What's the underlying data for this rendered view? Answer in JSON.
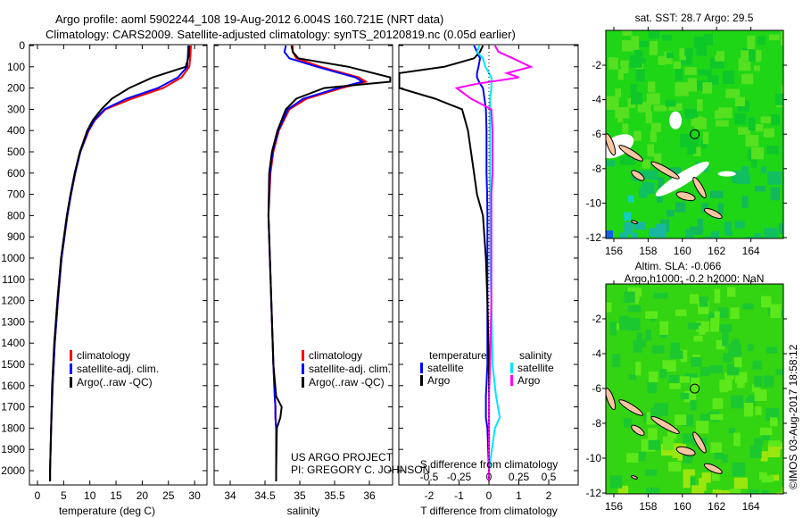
{
  "title": {
    "line1": "Argo profile: aoml 5902244_108 19-Aug-2012 6.004S 160.721E (NRT data)",
    "line2": "Climatology: CARS2009. Satellite-adjusted climatology: synTS_20120819.nc (0.05d earlier)"
  },
  "colors": {
    "climatology": "#ff0000",
    "satellite": "#0000ff",
    "argo": "#000000",
    "sal_satellite": "#00e5ff",
    "sal_argo": "#ff00ff"
  },
  "annotation": {
    "project": "US ARGO PROJECT",
    "pi": "PI: GREGORY C. JOHNSON"
  },
  "credit": "©IMOS 03-Aug-2017 18:58:12",
  "chart_data": [
    {
      "type": "line",
      "name": "temperature",
      "xlabel": "temperature (deg C)",
      "ylim": [
        2070,
        0
      ],
      "xlim": [
        -1.5,
        32.5
      ],
      "xticks": [
        "0",
        "5",
        "10",
        "15",
        "20",
        "25",
        "30"
      ],
      "yticks": [
        "0",
        "100",
        "200",
        "300",
        "400",
        "500",
        "600",
        "700",
        "800",
        "900",
        "1000",
        "1100",
        "1200",
        "1300",
        "1400",
        "1500",
        "1600",
        "1700",
        "1800",
        "1900",
        "2000"
      ],
      "legend": [
        "climatology",
        "satellite-adj. clim.",
        "Argo(..raw -QC)"
      ],
      "depth": [
        0,
        50,
        100,
        150,
        200,
        250,
        300,
        350,
        400,
        500,
        600,
        700,
        800,
        1000,
        1200,
        1400,
        1600,
        1800,
        2000,
        2050
      ],
      "series": [
        {
          "name": "climatology",
          "values": [
            29.3,
            29.2,
            29.0,
            27.5,
            24,
            18,
            13,
            11,
            9.8,
            8.2,
            7.2,
            6.4,
            5.7,
            4.6,
            3.9,
            3.3,
            2.9,
            2.6,
            2.4,
            2.4
          ]
        },
        {
          "name": "satellite-adj. clim.",
          "values": [
            28.8,
            28.7,
            28.6,
            26.8,
            23,
            17,
            12.8,
            10.9,
            9.7,
            8.2,
            7.2,
            6.4,
            5.7,
            4.6,
            3.9,
            3.3,
            2.9,
            2.6,
            2.4,
            2.4
          ]
        },
        {
          "name": "Argo(..raw -QC)",
          "values": [
            29.0,
            28.9,
            28.3,
            22,
            17.5,
            14.2,
            12.2,
            10.6,
            9.5,
            8.1,
            7.1,
            6.3,
            5.6,
            4.5,
            3.8,
            3.2,
            2.8,
            2.6,
            2.4,
            2.4
          ]
        }
      ]
    },
    {
      "type": "line",
      "name": "salinity",
      "xlabel": "salinity",
      "ylim": [
        2070,
        0
      ],
      "xlim": [
        33.77,
        36.33
      ],
      "xticks": [
        "34",
        "34.5",
        "35",
        "35.5",
        "36"
      ],
      "legend": [
        "climatology",
        "satellite-adj. clim.",
        "Argo(..raw -QC)"
      ],
      "depth": [
        0,
        30,
        60,
        100,
        150,
        170,
        200,
        250,
        300,
        400,
        500,
        600,
        800,
        1000,
        1500,
        1650,
        1700,
        1750,
        1800,
        2000,
        2050
      ],
      "series": [
        {
          "name": "climatology",
          "values": [
            34.9,
            34.9,
            34.95,
            35.3,
            35.85,
            35.95,
            35.6,
            35.1,
            34.85,
            34.7,
            34.62,
            34.58,
            34.55,
            34.57,
            34.62,
            34.64,
            34.65,
            34.65,
            34.66,
            34.66,
            34.66
          ]
        },
        {
          "name": "satellite-adj. clim.",
          "values": [
            34.8,
            34.78,
            34.85,
            35.25,
            35.8,
            35.9,
            35.55,
            35.05,
            34.83,
            34.69,
            34.61,
            34.57,
            34.55,
            34.57,
            34.62,
            34.64,
            34.65,
            34.65,
            34.66,
            34.66,
            34.66
          ]
        },
        {
          "name": "Argo(..raw -QC)",
          "values": [
            34.88,
            34.9,
            34.98,
            35.7,
            36.3,
            36.3,
            35.35,
            34.95,
            34.8,
            34.68,
            34.6,
            34.56,
            34.55,
            34.57,
            34.62,
            34.66,
            34.74,
            34.72,
            34.67,
            34.66,
            34.66
          ]
        }
      ]
    },
    {
      "type": "line",
      "name": "difference",
      "xlabel": "T difference from climatology",
      "x2label": "S difference from climatology",
      "ylim": [
        2070,
        0
      ],
      "xlim": [
        -3,
        3
      ],
      "xticks": [
        "-2",
        "-1",
        "0",
        "1",
        "2"
      ],
      "x2ticks": [
        "-0.5",
        "-0.25",
        "0",
        "0.25",
        "0.5"
      ],
      "legend_titles": [
        "temperature",
        "salinity"
      ],
      "legend": [
        "satellite",
        "Argo",
        "satellite",
        "Argo"
      ],
      "depth": [
        0,
        30,
        60,
        100,
        130,
        150,
        180,
        200,
        250,
        300,
        400,
        500,
        600,
        700,
        800,
        1000,
        1200,
        1500,
        1650,
        1750,
        1800,
        2000,
        2050
      ],
      "series": [
        {
          "name": "T satellite",
          "kind": "T",
          "values": [
            -0.5,
            -0.4,
            -0.3,
            -0.35,
            -0.4,
            -0.4,
            -0.3,
            -0.2,
            -0.15,
            -0.1,
            -0.08,
            -0.08,
            -0.08,
            -0.06,
            -0.05,
            -0.05,
            -0.05,
            -0.05,
            -0.1,
            -0.1,
            -0.05,
            0,
            0
          ]
        },
        {
          "name": "T Argo",
          "kind": "T",
          "values": [
            -0.2,
            -0.3,
            -0.5,
            -1.5,
            -3,
            -3,
            -3,
            -3,
            -1.8,
            -0.9,
            -0.7,
            -0.6,
            -0.5,
            -0.4,
            -0.2,
            -0.1,
            -0.05,
            0,
            0,
            0,
            0,
            0,
            0
          ]
        },
        {
          "name": "S satellite",
          "kind": "S",
          "values": [
            -0.08,
            -0.1,
            -0.05,
            -0.03,
            0,
            0.02,
            0.02,
            0.02,
            0.01,
            0.01,
            0.01,
            0.01,
            0.01,
            0.01,
            0.01,
            0.01,
            0.02,
            0.03,
            0.06,
            0.09,
            0.05,
            0,
            0
          ]
        },
        {
          "name": "S Argo",
          "kind": "S",
          "values": [
            0.05,
            0.08,
            0.2,
            0.35,
            0.15,
            0.25,
            -0.1,
            -0.27,
            -0.15,
            0.02,
            0.03,
            0.03,
            0.03,
            0.02,
            0.02,
            0.02,
            0.02,
            0.01,
            0,
            0,
            0,
            0,
            0
          ]
        }
      ]
    },
    {
      "type": "heatmap",
      "name": "sst-map",
      "title": "sat. SST: 28.7 Argo: 29.5",
      "xticks": [
        "156",
        "158",
        "160",
        "162",
        "164"
      ],
      "yticks": [
        "-2",
        "-4",
        "-6",
        "-8",
        "-10",
        "-12"
      ],
      "marker": {
        "lon": 160.721,
        "lat": -6.004
      }
    },
    {
      "type": "heatmap",
      "name": "sla-map",
      "title1": "Altim. SLA: -0.066",
      "title2": "Argo h1000: -0.2 h2000: NaN",
      "xticks": [
        "156",
        "158",
        "160",
        "162",
        "164"
      ],
      "yticks": [
        "-2",
        "-4",
        "-6",
        "-8",
        "-10",
        "-12"
      ],
      "marker": {
        "lon": 160.721,
        "lat": -6.004
      }
    }
  ]
}
